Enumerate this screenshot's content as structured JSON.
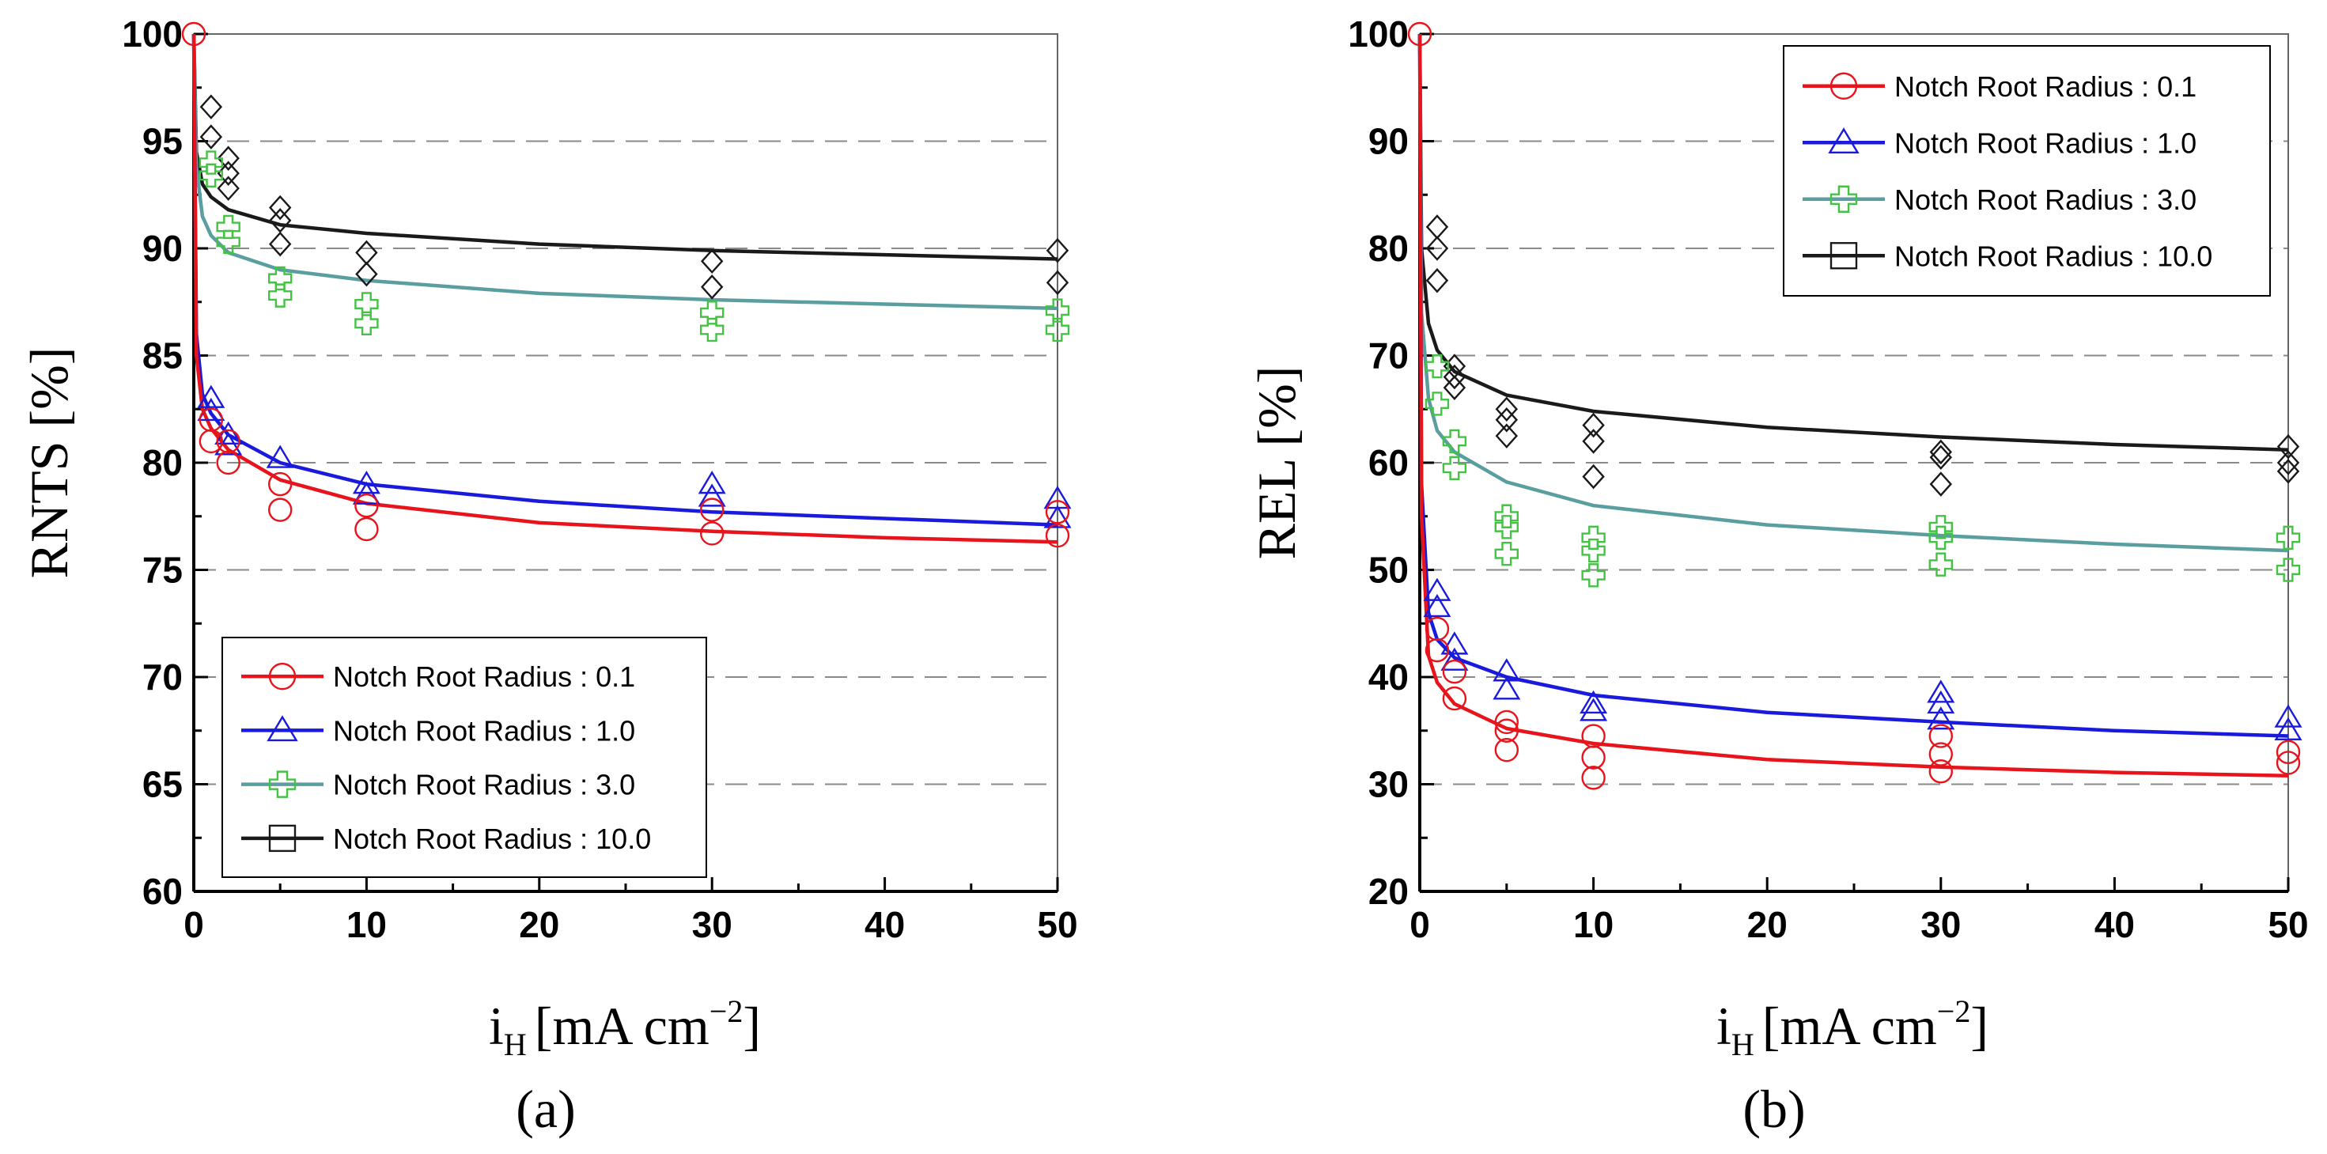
{
  "chart_data": [
    {
      "id": "a",
      "type": "scatter",
      "sublabel": "(a)",
      "xlabel_main": "i",
      "xlabel_sub": "H",
      "xlabel_units": "[mA cm",
      "xlabel_sup": "−2",
      "xlabel_close": "]",
      "ylabel": "RNTS [%]",
      "xlim": [
        0,
        50
      ],
      "ylim": [
        60,
        100
      ],
      "xticks": [
        "0",
        "10",
        "20",
        "30",
        "40",
        "50"
      ],
      "yticks": [
        "60",
        "65",
        "70",
        "75",
        "80",
        "85",
        "90",
        "95",
        "100"
      ],
      "legend_position": "bottom-left",
      "series": [
        {
          "name": "Notch Root Radius : 0.1",
          "marker": "circle",
          "color": "#e8141c",
          "fit": [
            [
              0,
              100
            ],
            [
              0.15,
              85
            ],
            [
              0.5,
              82.5
            ],
            [
              1,
              81.6
            ],
            [
              2,
              80.6
            ],
            [
              5,
              79.2
            ],
            [
              10,
              78.1
            ],
            [
              20,
              77.2
            ],
            [
              30,
              76.8
            ],
            [
              40,
              76.5
            ],
            [
              50,
              76.3
            ]
          ],
          "points": [
            [
              0,
              100
            ],
            [
              1,
              82
            ],
            [
              1,
              81
            ],
            [
              2,
              81
            ],
            [
              2,
              80
            ],
            [
              5,
              79
            ],
            [
              5,
              77.8
            ],
            [
              10,
              78
            ],
            [
              10,
              76.9
            ],
            [
              30,
              77.8
            ],
            [
              30,
              76.7
            ],
            [
              50,
              77.7
            ],
            [
              50,
              76.6
            ]
          ]
        },
        {
          "name": "Notch Root Radius : 1.0",
          "marker": "triangle",
          "color": "#1a1adc",
          "fit": [
            [
              0,
              100
            ],
            [
              0.15,
              86
            ],
            [
              0.5,
              83.2
            ],
            [
              1,
              82.3
            ],
            [
              2,
              81.3
            ],
            [
              5,
              80
            ],
            [
              10,
              79
            ],
            [
              20,
              78.2
            ],
            [
              30,
              77.7
            ],
            [
              40,
              77.4
            ],
            [
              50,
              77.1
            ]
          ],
          "points": [
            [
              1,
              83
            ],
            [
              1,
              82.4
            ],
            [
              2,
              81.3
            ],
            [
              2,
              80.8
            ],
            [
              5,
              80.2
            ],
            [
              10,
              79
            ],
            [
              10,
              78.5
            ],
            [
              30,
              79
            ],
            [
              30,
              78.4
            ],
            [
              50,
              78.3
            ],
            [
              50,
              77.4
            ]
          ]
        },
        {
          "name": "Notch Root Radius : 3.0",
          "marker": "plus",
          "color": "#44c244",
          "line_color": "#5a9ea0",
          "fit": [
            [
              0,
              100
            ],
            [
              0.15,
              93.8
            ],
            [
              0.5,
              91.5
            ],
            [
              1,
              90.6
            ],
            [
              2,
              89.8
            ],
            [
              5,
              89
            ],
            [
              10,
              88.5
            ],
            [
              20,
              87.9
            ],
            [
              30,
              87.6
            ],
            [
              40,
              87.4
            ],
            [
              50,
              87.2
            ]
          ],
          "points": [
            [
              1,
              94
            ],
            [
              1,
              93.4
            ],
            [
              2,
              91
            ],
            [
              2,
              90.3
            ],
            [
              5,
              88.6
            ],
            [
              5,
              87.8
            ],
            [
              10,
              87.4
            ],
            [
              10,
              86.5
            ],
            [
              30,
              87
            ],
            [
              30,
              86.2
            ],
            [
              50,
              87.1
            ],
            [
              50,
              86.2
            ]
          ]
        },
        {
          "name": "Notch Root Radius : 10.0",
          "marker": "diamond",
          "color": "#1a1a1a",
          "fit": [
            [
              0,
              100
            ],
            [
              0.15,
              94.5
            ],
            [
              0.5,
              93
            ],
            [
              1,
              92.4
            ],
            [
              2,
              91.8
            ],
            [
              5,
              91.1
            ],
            [
              10,
              90.7
            ],
            [
              20,
              90.2
            ],
            [
              30,
              89.9
            ],
            [
              40,
              89.7
            ],
            [
              50,
              89.5
            ]
          ],
          "points": [
            [
              1,
              96.6
            ],
            [
              1,
              95.2
            ],
            [
              2,
              94.2
            ],
            [
              2,
              93.5
            ],
            [
              2,
              92.8
            ],
            [
              5,
              91.9
            ],
            [
              5,
              91.3
            ],
            [
              5,
              90.2
            ],
            [
              10,
              89.8
            ],
            [
              10,
              88.8
            ],
            [
              30,
              89.4
            ],
            [
              30,
              88.2
            ],
            [
              50,
              89.9
            ],
            [
              50,
              88.4
            ]
          ]
        }
      ]
    },
    {
      "id": "b",
      "type": "scatter",
      "sublabel": "(b)",
      "xlabel_main": "i",
      "xlabel_sub": "H",
      "xlabel_units": "[mA cm",
      "xlabel_sup": "−2",
      "xlabel_close": "]",
      "ylabel": "REL [%]",
      "xlim": [
        0,
        50
      ],
      "ylim": [
        20,
        100
      ],
      "xticks": [
        "0",
        "10",
        "20",
        "30",
        "40",
        "50"
      ],
      "yticks": [
        "20",
        "30",
        "40",
        "50",
        "60",
        "70",
        "80",
        "90",
        "100"
      ],
      "legend_position": "top-right",
      "series": [
        {
          "name": "Notch Root Radius : 0.1",
          "marker": "circle",
          "color": "#e8141c",
          "fit": [
            [
              0,
              100
            ],
            [
              0.1,
              55
            ],
            [
              0.5,
              42
            ],
            [
              1,
              39.5
            ],
            [
              2,
              37.5
            ],
            [
              5,
              35.2
            ],
            [
              10,
              33.8
            ],
            [
              20,
              32.3
            ],
            [
              30,
              31.6
            ],
            [
              40,
              31.1
            ],
            [
              50,
              30.8
            ]
          ],
          "points": [
            [
              0,
              100
            ],
            [
              1,
              44.5
            ],
            [
              1,
              42.5
            ],
            [
              2,
              40.5
            ],
            [
              2,
              38
            ],
            [
              5,
              35.8
            ],
            [
              5,
              35
            ],
            [
              5,
              33.2
            ],
            [
              10,
              34.5
            ],
            [
              10,
              32.5
            ],
            [
              10,
              30.6
            ],
            [
              30,
              34.5
            ],
            [
              30,
              32.8
            ],
            [
              30,
              31.2
            ],
            [
              50,
              33
            ],
            [
              50,
              32
            ]
          ]
        },
        {
          "name": "Notch Root Radius : 1.0",
          "marker": "triangle",
          "color": "#1a1adc",
          "fit": [
            [
              0,
              100
            ],
            [
              0.1,
              58
            ],
            [
              0.5,
              46
            ],
            [
              1,
              43.5
            ],
            [
              2,
              41.8
            ],
            [
              5,
              40
            ],
            [
              10,
              38.3
            ],
            [
              20,
              36.7
            ],
            [
              30,
              35.8
            ],
            [
              40,
              35
            ],
            [
              50,
              34.5
            ]
          ],
          "points": [
            [
              1,
              48
            ],
            [
              1,
              46.5
            ],
            [
              2,
              43
            ],
            [
              2,
              41.5
            ],
            [
              5,
              40.5
            ],
            [
              5,
              38.8
            ],
            [
              10,
              37.5
            ],
            [
              10,
              36.8
            ],
            [
              30,
              38.5
            ],
            [
              30,
              37.5
            ],
            [
              30,
              36
            ],
            [
              50,
              36.2
            ],
            [
              50,
              35
            ]
          ]
        },
        {
          "name": "Notch Root Radius : 3.0",
          "marker": "plus",
          "color": "#44c244",
          "line_color": "#5a9ea0",
          "fit": [
            [
              0,
              100
            ],
            [
              0.1,
              74
            ],
            [
              0.5,
              66
            ],
            [
              1,
              63
            ],
            [
              2,
              61
            ],
            [
              5,
              58.2
            ],
            [
              10,
              56
            ],
            [
              20,
              54.2
            ],
            [
              30,
              53.2
            ],
            [
              40,
              52.4
            ],
            [
              50,
              51.8
            ]
          ],
          "points": [
            [
              1,
              69
            ],
            [
              1,
              65.5
            ],
            [
              2,
              62
            ],
            [
              2,
              59.5
            ],
            [
              5,
              55
            ],
            [
              5,
              54
            ],
            [
              5,
              51.5
            ],
            [
              10,
              53
            ],
            [
              10,
              51.8
            ],
            [
              10,
              49.5
            ],
            [
              30,
              54
            ],
            [
              30,
              53
            ],
            [
              30,
              50.5
            ],
            [
              50,
              53
            ],
            [
              50,
              50
            ]
          ]
        },
        {
          "name": "Notch Root Radius : 10.0",
          "marker": "diamond",
          "color": "#1a1a1a",
          "fit": [
            [
              0,
              100
            ],
            [
              0.1,
              80
            ],
            [
              0.5,
              73
            ],
            [
              1,
              70.5
            ],
            [
              2,
              68.5
            ],
            [
              5,
              66.3
            ],
            [
              10,
              64.8
            ],
            [
              20,
              63.3
            ],
            [
              30,
              62.4
            ],
            [
              40,
              61.7
            ],
            [
              50,
              61.2
            ]
          ],
          "points": [
            [
              1,
              82
            ],
            [
              1,
              80
            ],
            [
              1,
              77
            ],
            [
              2,
              69
            ],
            [
              2,
              68
            ],
            [
              2,
              67
            ],
            [
              5,
              65
            ],
            [
              5,
              64
            ],
            [
              5,
              62.5
            ],
            [
              10,
              63.5
            ],
            [
              10,
              62
            ],
            [
              10,
              58.7
            ],
            [
              30,
              61
            ],
            [
              30,
              60.5
            ],
            [
              30,
              58
            ],
            [
              50,
              61.5
            ],
            [
              50,
              60
            ],
            [
              50,
              59.2
            ]
          ]
        }
      ]
    }
  ]
}
